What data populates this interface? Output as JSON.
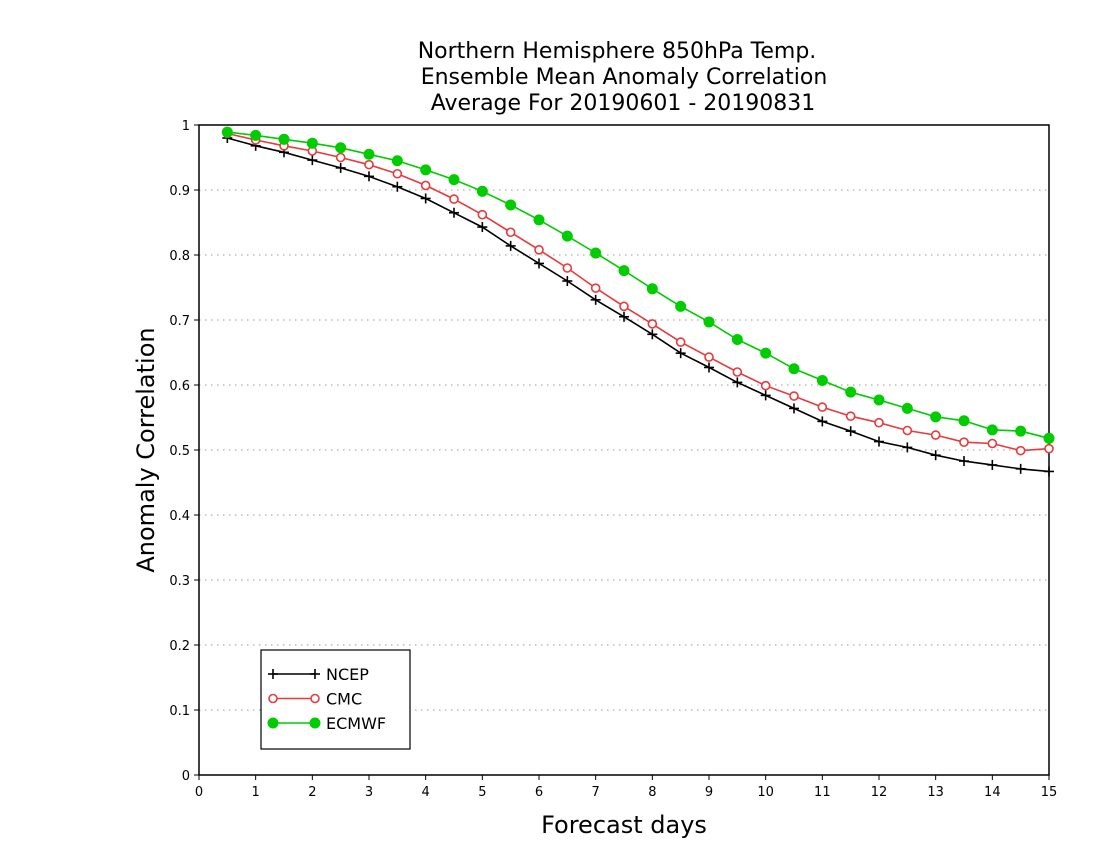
{
  "chart_data": {
    "type": "line",
    "title": [
      "Northern Hemisphere 850hPa Temp.",
      "Ensemble Mean Anomaly Correlation",
      "Average For 20190601 - 20190831"
    ],
    "xlabel": "Forecast days",
    "ylabel": "Anomaly Correlation",
    "xlim": [
      0,
      15
    ],
    "ylim": [
      0,
      1
    ],
    "xticks": [
      "0",
      "1",
      "2",
      "3",
      "4",
      "5",
      "6",
      "7",
      "8",
      "9",
      "10",
      "11",
      "12",
      "13",
      "14",
      "15"
    ],
    "yticks": [
      "0",
      "0.1",
      "0.2",
      "0.3",
      "0.4",
      "0.5",
      "0.6",
      "0.7",
      "0.8",
      "0.9",
      "1"
    ],
    "grid": "dotted horizontal",
    "legend_position": "bottom-left",
    "x": [
      0.5,
      1,
      1.5,
      2,
      2.5,
      3,
      3.5,
      4,
      4.5,
      5,
      5.5,
      6,
      6.5,
      7,
      7.5,
      8,
      8.5,
      9,
      9.5,
      10,
      10.5,
      11,
      11.5,
      12,
      12.5,
      13,
      13.5,
      14,
      14.5,
      15
    ],
    "series": [
      {
        "name": "NCEP",
        "color": "#000000",
        "marker": "plus",
        "values": [
          0.98,
          0.968,
          0.958,
          0.946,
          0.934,
          0.921,
          0.905,
          0.887,
          0.865,
          0.843,
          0.814,
          0.787,
          0.76,
          0.731,
          0.705,
          0.678,
          0.649,
          0.627,
          0.604,
          0.584,
          0.564,
          0.544,
          0.529,
          0.513,
          0.504,
          0.492,
          0.483,
          0.477,
          0.471,
          0.467
        ]
      },
      {
        "name": "CMC",
        "color": "#e8393b",
        "marker": "open-circle",
        "values": [
          0.987,
          0.977,
          0.968,
          0.96,
          0.95,
          0.939,
          0.925,
          0.907,
          0.886,
          0.862,
          0.835,
          0.808,
          0.78,
          0.749,
          0.721,
          0.694,
          0.666,
          0.643,
          0.62,
          0.599,
          0.583,
          0.566,
          0.552,
          0.542,
          0.53,
          0.523,
          0.512,
          0.51,
          0.499,
          0.502
        ]
      },
      {
        "name": "ECMWF",
        "color": "#00cc00",
        "marker": "filled-circle",
        "values": [
          0.989,
          0.984,
          0.978,
          0.972,
          0.965,
          0.955,
          0.945,
          0.931,
          0.916,
          0.898,
          0.877,
          0.854,
          0.829,
          0.803,
          0.776,
          0.748,
          0.721,
          0.697,
          0.67,
          0.649,
          0.625,
          0.607,
          0.589,
          0.577,
          0.564,
          0.551,
          0.545,
          0.531,
          0.529,
          0.518
        ]
      }
    ]
  }
}
